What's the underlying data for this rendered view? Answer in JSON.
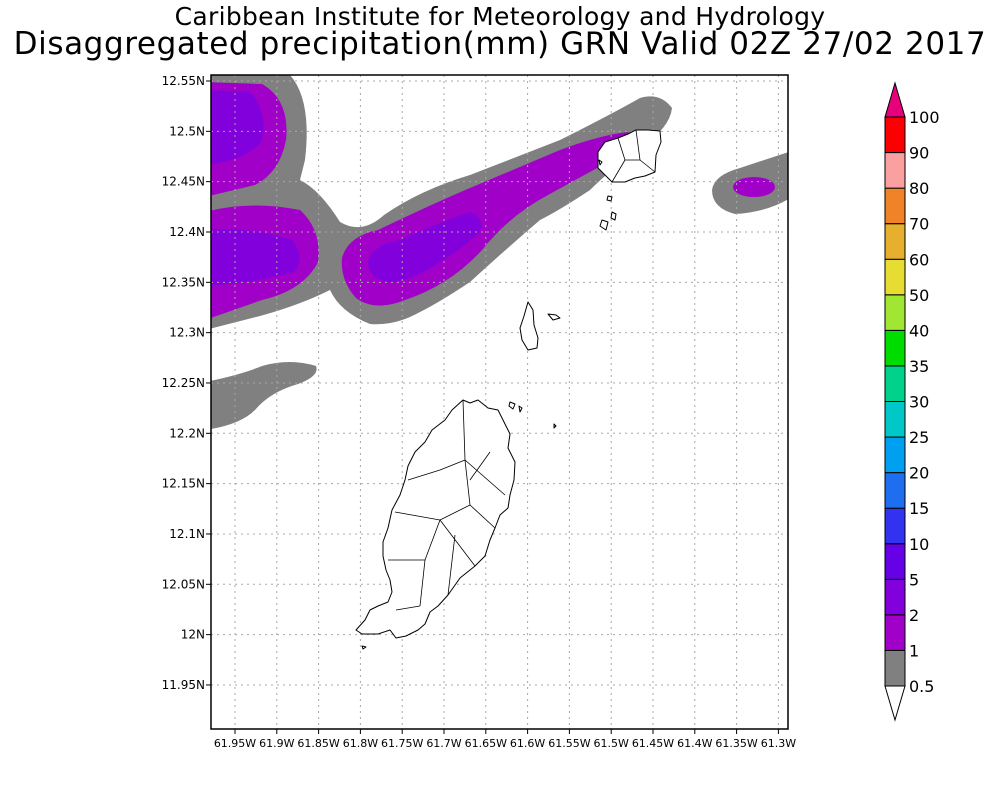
{
  "title": "Caribbean Institute for Meteorology and Hydrology",
  "subtitle": "Disaggregated precipitation(mm) GRN Valid 02Z 27/02 2017",
  "map": {
    "lon_range": [
      -61.965,
      -61.275
    ],
    "lat_range": [
      11.92,
      12.56
    ],
    "lat_ticks": [
      "12.55N",
      "12.5N",
      "12.45N",
      "12.4N",
      "12.35N",
      "12.3N",
      "12.25N",
      "12.2N",
      "12.15N",
      "12.1N",
      "12.05N",
      "12N",
      "11.95N"
    ],
    "lon_ticks": [
      "61.95W",
      "61.9W",
      "61.85W",
      "61.8W",
      "61.75W",
      "61.7W",
      "61.65W",
      "61.6W",
      "61.55W",
      "61.5W",
      "61.45W",
      "61.4W",
      "61.35W",
      "61.3W"
    ],
    "gridlines": true
  },
  "colorbar": {
    "labels": [
      "0.5",
      "1",
      "2",
      "5",
      "10",
      "15",
      "20",
      "25",
      "30",
      "35",
      "40",
      "50",
      "60",
      "70",
      "80",
      "90",
      "100"
    ],
    "colors": [
      "#808080",
      "#a000c8",
      "#8200dc",
      "#6600e6",
      "#3232f0",
      "#1e6ef0",
      "#00a0f0",
      "#00c8c8",
      "#00d28c",
      "#00dc00",
      "#a0e632",
      "#e6dc32",
      "#e6af2d",
      "#f08228",
      "#faa0a0",
      "#fa0000",
      "#f03c3c",
      "#e6007c"
    ],
    "under_color": "#ffffff",
    "over_color": "#e6007c"
  }
}
